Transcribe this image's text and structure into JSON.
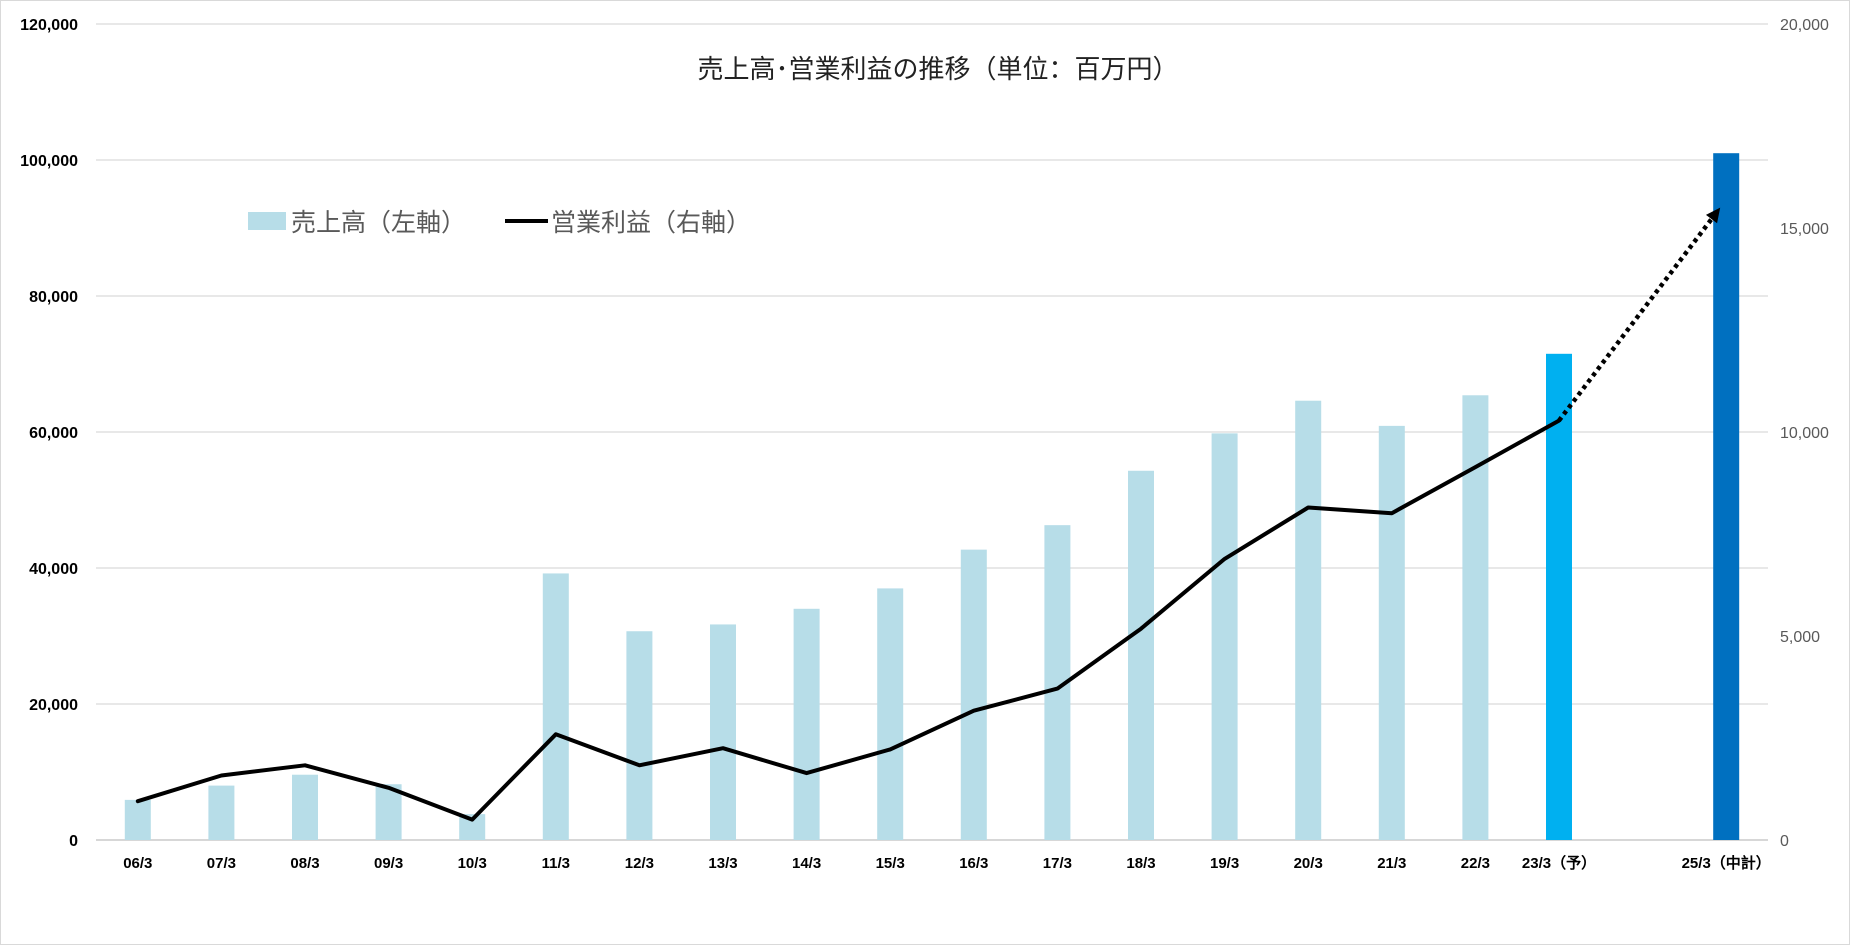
{
  "chart_data": {
    "type": "bar",
    "title": "売上高･営業利益の推移（単位：百万円）",
    "categories": [
      "06/3",
      "07/3",
      "08/3",
      "09/3",
      "10/3",
      "11/3",
      "12/3",
      "13/3",
      "14/3",
      "15/3",
      "16/3",
      "17/3",
      "18/3",
      "19/3",
      "20/3",
      "21/3",
      "22/3",
      "23/3（予）",
      "",
      "25/3（中計）"
    ],
    "series": [
      {
        "name": "売上高（左軸）",
        "kind": "bar",
        "axis": "left",
        "values": [
          5900,
          8000,
          9600,
          8200,
          3800,
          39200,
          30700,
          31700,
          34000,
          37000,
          42700,
          46300,
          54300,
          59800,
          64600,
          60900,
          65400,
          71500,
          null,
          101000
        ],
        "colors": [
          "#b7dde8",
          "#b7dde8",
          "#b7dde8",
          "#b7dde8",
          "#b7dde8",
          "#b7dde8",
          "#b7dde8",
          "#b7dde8",
          "#b7dde8",
          "#b7dde8",
          "#b7dde8",
          "#b7dde8",
          "#b7dde8",
          "#b7dde8",
          "#b7dde8",
          "#b7dde8",
          "#b7dde8",
          "#00b0f0",
          null,
          "#0070c0"
        ]
      },
      {
        "name": "営業利益（右軸）",
        "kind": "line",
        "axis": "right",
        "color": "#000000",
        "values": [
          950,
          1580,
          1830,
          1280,
          500,
          2590,
          1830,
          2250,
          1640,
          2220,
          3170,
          3710,
          5180,
          6890,
          8150,
          8010,
          9140,
          10280,
          null,
          15500
        ],
        "dotted_segment": {
          "from_index": 17,
          "to_index": 19
        }
      }
    ],
    "left_axis": {
      "min": 0,
      "max": 120000,
      "ticks": [
        "0",
        "20,000",
        "40,000",
        "60,000",
        "80,000",
        "100,000",
        "120,000"
      ]
    },
    "right_axis": {
      "min": 0,
      "max": 20000,
      "ticks": [
        "0",
        "5,000",
        "10,000",
        "15,000",
        "20,000"
      ]
    },
    "grid": true,
    "legend_position": "top-left"
  }
}
